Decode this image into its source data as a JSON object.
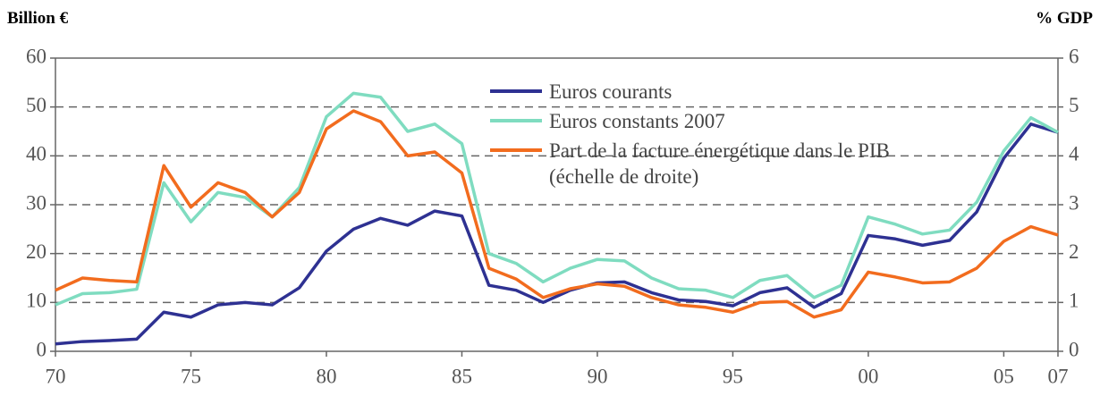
{
  "chart_data": {
    "type": "line",
    "y_label": "Billion €",
    "y2_label": "% GDP",
    "x": [
      1970,
      1971,
      1972,
      1973,
      1974,
      1975,
      1976,
      1977,
      1978,
      1979,
      1980,
      1981,
      1982,
      1983,
      1984,
      1985,
      1986,
      1987,
      1988,
      1989,
      1990,
      1991,
      1992,
      1993,
      1994,
      1995,
      1996,
      1997,
      1998,
      1999,
      2000,
      2001,
      2002,
      2003,
      2004,
      2005,
      2006,
      2007
    ],
    "xlim": [
      1970,
      2007
    ],
    "xticks": [
      {
        "value": 1970,
        "label": "70"
      },
      {
        "value": 1975,
        "label": "75"
      },
      {
        "value": 1980,
        "label": "80"
      },
      {
        "value": 1985,
        "label": "85"
      },
      {
        "value": 1990,
        "label": "90"
      },
      {
        "value": 1995,
        "label": "95"
      },
      {
        "value": 2000,
        "label": "00"
      },
      {
        "value": 2005,
        "label": "05"
      },
      {
        "value": 2007,
        "label": "07"
      }
    ],
    "ylim": [
      0,
      60
    ],
    "yticks": [
      0,
      10,
      20,
      30,
      40,
      50,
      60
    ],
    "y2lim": [
      0,
      6
    ],
    "y2ticks": [
      0,
      1,
      2,
      3,
      4,
      5,
      6
    ],
    "grid": true,
    "legend": "top",
    "series": [
      {
        "name": "Euros courants",
        "color": "#2e3192",
        "values": [
          1.5,
          2,
          2.2,
          2.5,
          8,
          7,
          9.5,
          10,
          9.5,
          13,
          20.5,
          25,
          27.2,
          25.8,
          28.7,
          27.7,
          13.5,
          12.5,
          10,
          12.5,
          14,
          14.2,
          12,
          10.5,
          10.2,
          9.3,
          12,
          13,
          9,
          11.8,
          23.7,
          23,
          21.7,
          22.7,
          28.5,
          39.5,
          46.5,
          44.8
        ]
      },
      {
        "name": "Euros constants 2007",
        "color": "#7fdcc0",
        "values": [
          9.5,
          11.8,
          12,
          12.7,
          34.5,
          26.5,
          32.5,
          31.5,
          27.5,
          33.5,
          48,
          52.8,
          52,
          45,
          46.5,
          42.5,
          20,
          18,
          14.2,
          17,
          18.8,
          18.5,
          15,
          12.8,
          12.5,
          11,
          14.5,
          15.5,
          11,
          13.5,
          27.5,
          26,
          24,
          24.8,
          30.5,
          41,
          47.8,
          44.8
        ]
      },
      {
        "name": "Part de la facture énergétique dans le PIB\n(échelle de droite)",
        "color": "#f26c1e",
        "axis": "y2",
        "values": [
          1.25,
          1.5,
          1.45,
          1.42,
          3.8,
          2.95,
          3.45,
          3.25,
          2.75,
          3.25,
          4.55,
          4.92,
          4.7,
          4,
          4.08,
          3.65,
          1.7,
          1.48,
          1.1,
          1.28,
          1.38,
          1.33,
          1.1,
          0.95,
          0.9,
          0.8,
          1,
          1.02,
          0.7,
          0.85,
          1.62,
          1.52,
          1.4,
          1.42,
          1.7,
          2.25,
          2.55,
          2.38
        ]
      }
    ]
  }
}
